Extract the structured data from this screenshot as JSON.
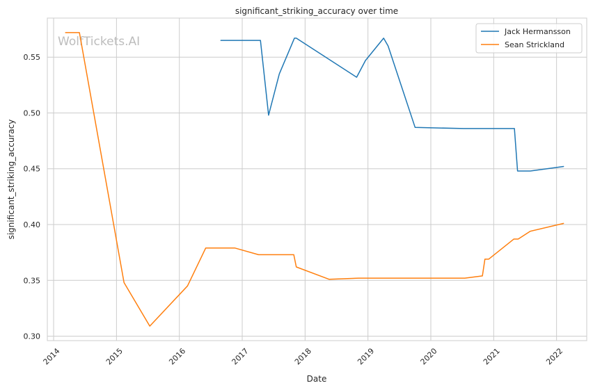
{
  "chart_data": {
    "type": "line",
    "title": "significant_striking_accuracy over time",
    "xlabel": "Date",
    "ylabel": "significant_striking_accuracy",
    "watermark": "WolfTickets.AI",
    "xlim": [
      2013.9,
      2022.48
    ],
    "ylim": [
      0.296,
      0.585
    ],
    "x_ticks": [
      2014,
      2015,
      2016,
      2017,
      2018,
      2019,
      2020,
      2021,
      2022
    ],
    "x_tick_labels": [
      "2014",
      "2015",
      "2016",
      "2017",
      "2018",
      "2019",
      "2020",
      "2021",
      "2022"
    ],
    "y_ticks": [
      0.3,
      0.35,
      0.4,
      0.45,
      0.5,
      0.55
    ],
    "y_tick_labels": [
      "0.30",
      "0.35",
      "0.40",
      "0.45",
      "0.50",
      "0.55"
    ],
    "grid": true,
    "legend_position": "top-right",
    "series": [
      {
        "name": "Jack Hermansson",
        "color": "#1f77b4",
        "points": [
          [
            2016.66,
            0.565
          ],
          [
            2017.29,
            0.565
          ],
          [
            2017.42,
            0.498
          ],
          [
            2017.59,
            0.535
          ],
          [
            2017.83,
            0.567
          ],
          [
            2017.86,
            0.567
          ],
          [
            2018.82,
            0.532
          ],
          [
            2018.96,
            0.547
          ],
          [
            2019.25,
            0.567
          ],
          [
            2019.32,
            0.56
          ],
          [
            2019.75,
            0.487
          ],
          [
            2020.52,
            0.486
          ],
          [
            2021.33,
            0.486
          ],
          [
            2021.38,
            0.448
          ],
          [
            2021.58,
            0.448
          ],
          [
            2022.11,
            0.452
          ]
        ]
      },
      {
        "name": "Sean Strickland",
        "color": "#ff7f0e",
        "points": [
          [
            2014.19,
            0.572
          ],
          [
            2014.41,
            0.572
          ],
          [
            2015.12,
            0.348
          ],
          [
            2015.53,
            0.309
          ],
          [
            2016.13,
            0.345
          ],
          [
            2016.42,
            0.379
          ],
          [
            2016.88,
            0.379
          ],
          [
            2017.26,
            0.373
          ],
          [
            2017.82,
            0.373
          ],
          [
            2017.86,
            0.362
          ],
          [
            2018.38,
            0.351
          ],
          [
            2018.85,
            0.352
          ],
          [
            2020.54,
            0.352
          ],
          [
            2020.82,
            0.354
          ],
          [
            2020.86,
            0.369
          ],
          [
            2020.92,
            0.369
          ],
          [
            2021.32,
            0.387
          ],
          [
            2021.39,
            0.387
          ],
          [
            2021.58,
            0.394
          ],
          [
            2022.11,
            0.401
          ]
        ]
      }
    ]
  }
}
